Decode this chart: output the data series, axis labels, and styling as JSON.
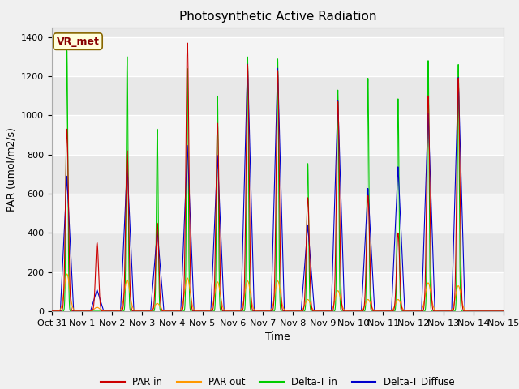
{
  "title": "Photosynthetic Active Radiation",
  "ylabel": "PAR (umol/m2/s)",
  "xlabel": "Time",
  "ylim": [
    0,
    1450
  ],
  "background_color": "#f0f0f0",
  "plot_bg_color": "#e8e8e8",
  "legend_labels": [
    "PAR in",
    "PAR out",
    "Delta-T in",
    "Delta-T Diffuse"
  ],
  "legend_colors": [
    "#cc0000",
    "#ff9900",
    "#00cc00",
    "#0000cc"
  ],
  "annotation_text": "VR_met",
  "annotation_bg": "#ffffdd",
  "annotation_border": "#886600",
  "title_fontsize": 11,
  "label_fontsize": 9,
  "tick_fontsize": 8,
  "n_days": 15,
  "n_per_day": 288,
  "par_in_peaks": [
    930,
    350,
    820,
    450,
    1370,
    960,
    1260,
    1230,
    580,
    1070,
    590,
    400,
    1100,
    1190,
    0
  ],
  "par_out_peaks": [
    190,
    20,
    160,
    40,
    170,
    150,
    155,
    155,
    60,
    105,
    60,
    60,
    145,
    130,
    0
  ],
  "delta_t_peaks": [
    1330,
    0,
    1300,
    930,
    1240,
    1100,
    1300,
    1290,
    755,
    1130,
    1190,
    1085,
    1280,
    1260,
    0
  ],
  "delta_d_peaks": [
    690,
    110,
    750,
    415,
    850,
    800,
    1270,
    1250,
    440,
    1080,
    630,
    740,
    1015,
    1195,
    0
  ],
  "x_tick_labels": [
    "Oct 31",
    "Nov 1",
    "Nov 2",
    "Nov 3",
    "Nov 4",
    "Nov 5",
    "Nov 6",
    "Nov 7",
    "Nov 8",
    "Nov 9",
    "Nov 10",
    "Nov 11",
    "Nov 12",
    "Nov 13",
    "Nov 14",
    "Nov 15"
  ],
  "horiz_bands": [
    [
      0,
      200,
      "white"
    ],
    [
      400,
      600,
      "white"
    ],
    [
      800,
      1000,
      "white"
    ],
    [
      1200,
      1400,
      "white"
    ]
  ]
}
